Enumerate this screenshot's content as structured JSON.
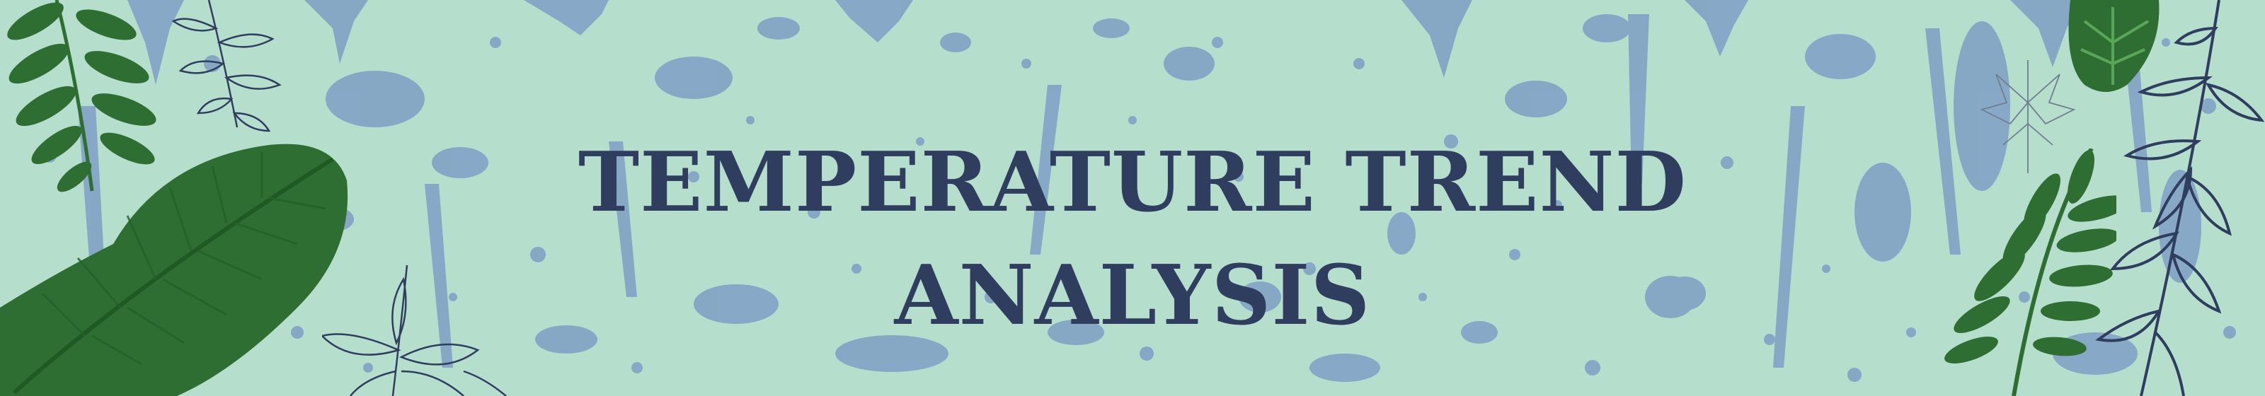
{
  "banner": {
    "title_line1": "TEMPERATURE TREND",
    "title_line2": "ANALYSIS"
  },
  "colors": {
    "background": "#b5dfcc",
    "splatter": "#7f9fc4",
    "title": "#2f3d5e",
    "leaf_dark": "#2e6e32",
    "leaf_mid": "#3f8a3f",
    "outline": "#2f3d5e"
  },
  "icons": {
    "left_decor": [
      "fern-icon",
      "banana-leaf-icon",
      "outline-leaf-sketch-icon"
    ],
    "right_decor": [
      "monstera-leaf-icon",
      "fern-icon",
      "outline-branch-icon",
      "maple-leaf-sketch-icon"
    ]
  }
}
